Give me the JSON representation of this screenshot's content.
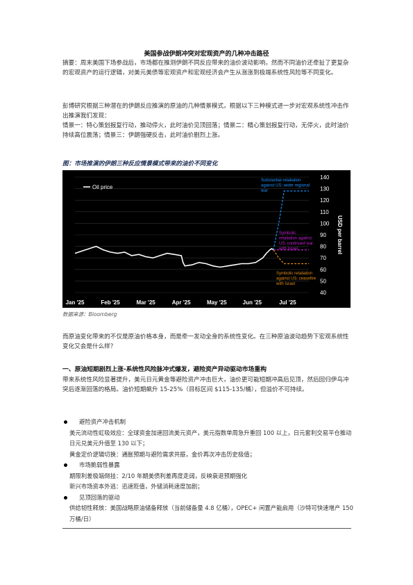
{
  "title": "美国参战伊朗冲突对宏观资产的几种冲击路径",
  "abstract": "摘要：周末美国下场参战后，市场都在推测伊朗不同反应带来的油价波动影响，然而不同油价还牵扯了更复杂的宏观资产的运行逻辑，对美元美债等宏观资产和宏观经济会产生从涨涨到极端系统性风险等不同变化。",
  "intro": "彭博研究根据三种潜在的伊朗反应推演的原油的几种情景模式，根据以下三种模式进一步对宏观系统性冲击作出推演我们发现：",
  "scenarios": "情景一：特心策划报复行动，推动停火，此时油价见顶回落；情景二：精心策划报复行动，无停火，此时油价持续高位震荡；情景三：伊朗强硬反击，此时油价剧烈上涨。",
  "figure_caption": "图：市场推演的伊朗三种反应情景模式带来的油价不同变化",
  "source": "数据来源：Bloomberg",
  "after_para": "而原油变化带来的不仅是原油价格本身，而是牵一发动全身的系统性变化。在三种原油波动趋势下宏观系统性变化又会是什么样？",
  "section_heading": "一、原油短期剧烈上涨-系统性风险脉冲式爆发，避险资产异动驱动市场重构",
  "section_para": "带来系统性风险显著提升，美元日元黄金等避险资产冲击巨大，油价更可能短期冲高后见顶，然后回归伊乌冲突后逐渐回落的格局。油价短期飙升 15-25%（目标区间 $115-135/桶），但溢价不可持续。",
  "bullets": [
    {
      "head": "避险资产冲击机制",
      "items": [
        "美元流动性虹吸效应：全球资金加速回流美元资产，美元指数单周急升重回 100 以上，日元套利交易平仓推动日元兑美元升值至 130 以下；",
        "黄金定价逻辑切换：通胀预期与避险需求共振，金价再次冲击历史极值；"
      ]
    },
    {
      "head": "市场脆弱性暴露",
      "items": [
        "期限利差极端倒挂：2/10 年期美债利差再度走阔，反映衰退预期强化",
        "新兴市场资本外逃：迅速贬值，外储消耗速度加剧；"
      ]
    },
    {
      "head": "见顶回落的驱动",
      "items": [
        "供给韧性释放：美国战略原油储备释放（当前储备量 4.8 亿桶），OPEC+ 闲置产能启用（沙特可快速增产 150 万桶/日）"
      ]
    }
  ],
  "chart_data": {
    "type": "line",
    "title": "",
    "legend": "Oil price",
    "ylabel": "USD per barrel",
    "ylim": [
      40,
      140
    ],
    "yticks": [
      40,
      50,
      60,
      70,
      80,
      90,
      100,
      110,
      120,
      130,
      140
    ],
    "xticks": [
      "Jan '25",
      "Feb '25",
      "Mar '25",
      "Apr '25",
      "May '25",
      "Jun '25",
      "Jul '25"
    ],
    "grid": true,
    "series": [
      {
        "name": "Oil price",
        "color": "#ffffff",
        "x": [
          0,
          0.2,
          0.4,
          0.6,
          0.8,
          1.0,
          1.2,
          1.4,
          1.6,
          1.8,
          2.0,
          2.2,
          2.4,
          2.6,
          2.8,
          3.0,
          3.05,
          3.1,
          3.3,
          3.5,
          3.7,
          3.9,
          4.1,
          4.3,
          4.5,
          4.7,
          4.9,
          5.1,
          5.3,
          5.4,
          5.5,
          5.55,
          5.6
        ],
        "y": [
          74,
          76,
          78,
          80,
          77,
          75,
          74,
          75,
          72,
          73,
          71,
          70,
          72,
          74,
          73,
          72,
          66,
          63,
          64,
          66,
          65,
          63,
          62,
          63,
          64,
          65,
          65,
          66,
          70,
          74,
          77,
          78,
          77
        ]
      },
      {
        "name": "Substantial retaliation against US; wider regional war",
        "color": "#1e90ff",
        "x": [
          5.6,
          5.75,
          5.9,
          6.6
        ],
        "y": [
          77,
          100,
          128,
          128
        ]
      },
      {
        "name": "Symbolic retaliation against US; continued war with Israel",
        "color": "#c020d0",
        "x": [
          5.6,
          5.75,
          6.6
        ],
        "y": [
          77,
          77,
          77
        ]
      },
      {
        "name": "Symbolic retaliation against US; ceasefire with Israel",
        "color": "#e08a1a",
        "x": [
          5.6,
          5.75,
          5.9,
          6.6
        ],
        "y": [
          77,
          70,
          65,
          65
        ]
      }
    ],
    "annotations": [
      {
        "text": [
          "Substantial retaliation",
          "against US; wider regional",
          "war"
        ],
        "color": "#1e90ff"
      },
      {
        "text": [
          "Symbolic",
          "retaliation against",
          "US; continued war",
          "with Israel"
        ],
        "color": "#c020d0"
      },
      {
        "text": [
          "Symbolic retaliation",
          "against US; ceasefire",
          "with Israel"
        ],
        "color": "#e08a1a"
      }
    ]
  }
}
